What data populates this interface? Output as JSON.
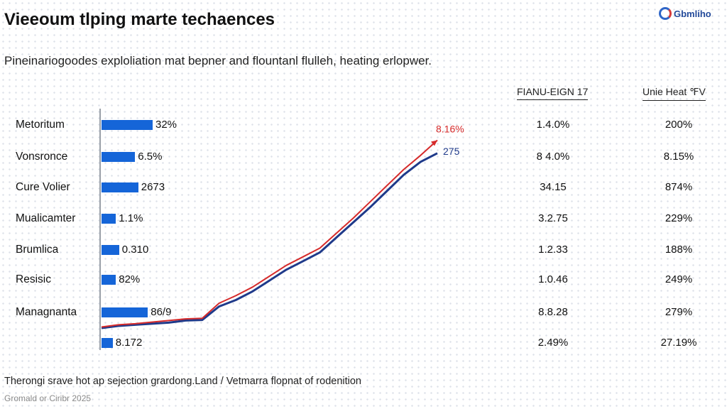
{
  "header": {
    "title": "Vieeoum tlping marte techaences",
    "subtitle": "Pineinariogoodes exploliation mat bepner and flountanl flulleh, heating erlopwer."
  },
  "logo": {
    "text": "Gbmliho"
  },
  "footer": {
    "note": "Therongi srave hot ap sejection grardong.Land / Vetmarra flopnat of rodenition",
    "source": "Gromald or Ciribr 2025"
  },
  "colors": {
    "bar": "#1565d8",
    "line_blue": "#1f3a8a",
    "line_red": "#d62b2b",
    "axis": "#9aa0a8"
  },
  "chart_data": [
    {
      "type": "bar",
      "orientation": "horizontal",
      "categories": [
        "Metoritum",
        "Vonsronce",
        "Cure Volier",
        "Mualicamter",
        "Brumlica",
        "Resisic",
        "Managnanta",
        ""
      ],
      "values": [
        3.2,
        2.1,
        2.3,
        0.9,
        1.1,
        0.9,
        2.9,
        0.7
      ],
      "value_labels": [
        "32%",
        "6.5%",
        "2673",
        "1.1%",
        "0.310",
        "82%",
        "86/9",
        "8.172"
      ]
    },
    {
      "type": "line",
      "series": [
        {
          "color": "#1f3a8a",
          "end_label": "275",
          "values": [
            0,
            0.2,
            0.3,
            0.4,
            0.5,
            0.7,
            0.75,
            2.0,
            2.6,
            3.4,
            4.4,
            5.4,
            6.2,
            7.0,
            8.4,
            9.8,
            11.2,
            12.7,
            14.2,
            15.4,
            16.2
          ]
        },
        {
          "color": "#d62b2b",
          "end_label": "8.16%",
          "values": [
            0.1,
            0.3,
            0.4,
            0.55,
            0.7,
            0.85,
            0.9,
            2.3,
            3.0,
            3.8,
            4.8,
            5.8,
            6.6,
            7.4,
            8.8,
            10.2,
            11.7,
            13.2,
            14.7,
            16.0,
            17.4
          ]
        }
      ]
    },
    {
      "type": "table",
      "columns": [
        "FIANU-EIGN 17",
        "Unie Heat ℉V"
      ],
      "rows": [
        [
          "1.4.0%",
          "200%"
        ],
        [
          "8 4.0%",
          "8.15%"
        ],
        [
          "34.15",
          "874%"
        ],
        [
          "3.2.75",
          "229%"
        ],
        [
          "1.2.33",
          "188%"
        ],
        [
          "1.0.46",
          "249%"
        ],
        [
          "8.8.28",
          "279%"
        ],
        [
          "2.49%",
          "27.19%"
        ]
      ]
    }
  ]
}
